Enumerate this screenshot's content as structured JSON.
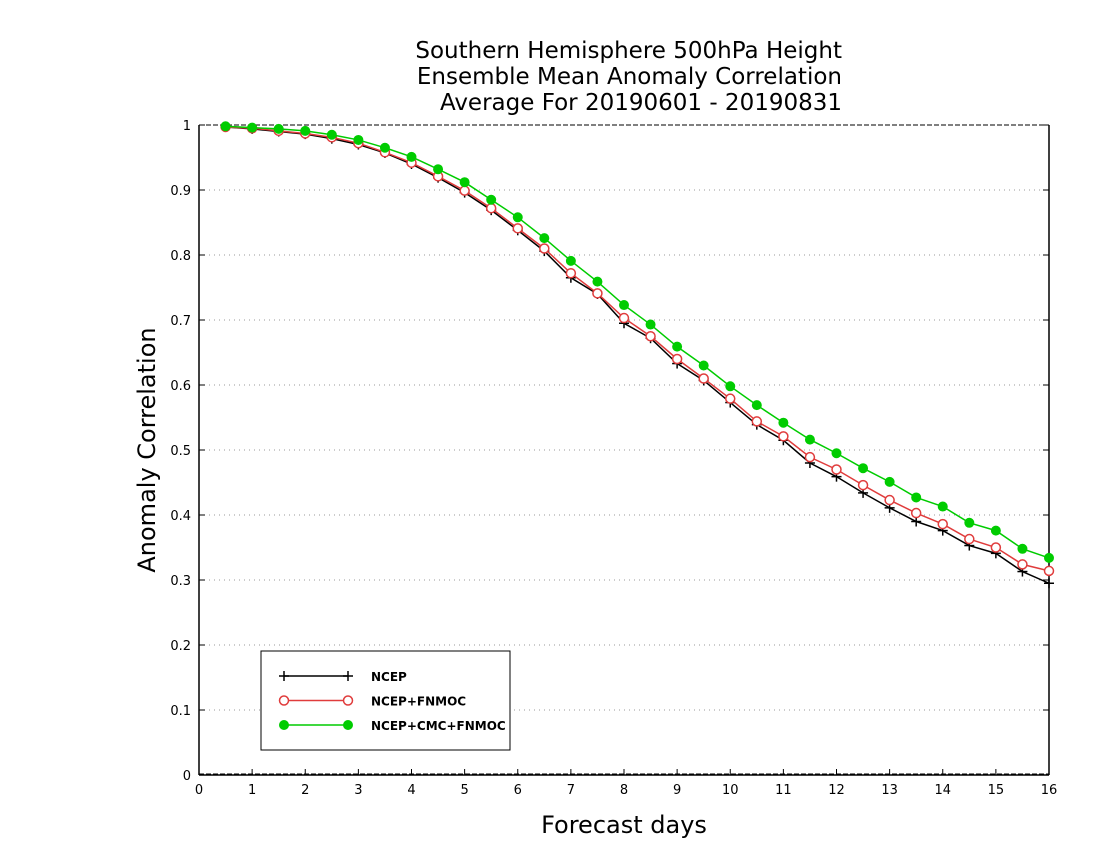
{
  "chart_data": {
    "type": "line",
    "title": [
      "Southern Hemisphere 500hPa Height",
      "Ensemble Mean Anomaly Correlation",
      "Average For 20190601 - 20190831"
    ],
    "xlabel": "Forecast days",
    "ylabel": "Anomaly Correlation",
    "xlim": [
      0,
      16
    ],
    "ylim": [
      0,
      1
    ],
    "x_ticks": [
      "0",
      "1",
      "2",
      "3",
      "4",
      "5",
      "6",
      "7",
      "8",
      "9",
      "10",
      "11",
      "12",
      "13",
      "14",
      "15",
      "16"
    ],
    "y_ticks": [
      "0",
      "0.1",
      "0.2",
      "0.3",
      "0.4",
      "0.5",
      "0.6",
      "0.7",
      "0.8",
      "0.9",
      "1"
    ],
    "grid": "horizontal dotted",
    "legend_position": "bottom-left",
    "x": [
      0.5,
      1,
      1.5,
      2,
      2.5,
      3,
      3.5,
      4,
      4.5,
      5,
      5.5,
      6,
      6.5,
      7,
      7.5,
      8,
      8.5,
      9,
      9.5,
      10,
      10.5,
      11,
      11.5,
      12,
      12.5,
      13,
      13.5,
      14,
      14.5,
      15,
      15.5,
      16
    ],
    "series": [
      {
        "name": "NCEP",
        "color": "#000000",
        "marker": "plus",
        "values": [
          0.997,
          0.994,
          0.99,
          0.986,
          0.979,
          0.97,
          0.957,
          0.94,
          0.919,
          0.896,
          0.869,
          0.838,
          0.806,
          0.765,
          0.74,
          0.695,
          0.672,
          0.633,
          0.607,
          0.573,
          0.539,
          0.515,
          0.48,
          0.459,
          0.434,
          0.411,
          0.39,
          0.376,
          0.353,
          0.341,
          0.313,
          0.295
        ]
      },
      {
        "name": "NCEP+FNMOC",
        "color": "#e03c3c",
        "marker": "open-circle",
        "values": [
          0.997,
          0.995,
          0.991,
          0.987,
          0.981,
          0.972,
          0.958,
          0.942,
          0.921,
          0.899,
          0.872,
          0.841,
          0.81,
          0.772,
          0.741,
          0.703,
          0.675,
          0.64,
          0.61,
          0.579,
          0.544,
          0.521,
          0.489,
          0.47,
          0.446,
          0.423,
          0.403,
          0.386,
          0.363,
          0.35,
          0.324,
          0.314
        ]
      },
      {
        "name": "NCEP+CMC+FNMOC",
        "color": "#00cc00",
        "marker": "filled-circle",
        "values": [
          0.998,
          0.996,
          0.994,
          0.991,
          0.985,
          0.977,
          0.965,
          0.951,
          0.932,
          0.912,
          0.885,
          0.858,
          0.826,
          0.791,
          0.759,
          0.723,
          0.693,
          0.659,
          0.63,
          0.598,
          0.569,
          0.542,
          0.516,
          0.495,
          0.472,
          0.451,
          0.427,
          0.413,
          0.388,
          0.376,
          0.348,
          0.334
        ]
      }
    ]
  }
}
